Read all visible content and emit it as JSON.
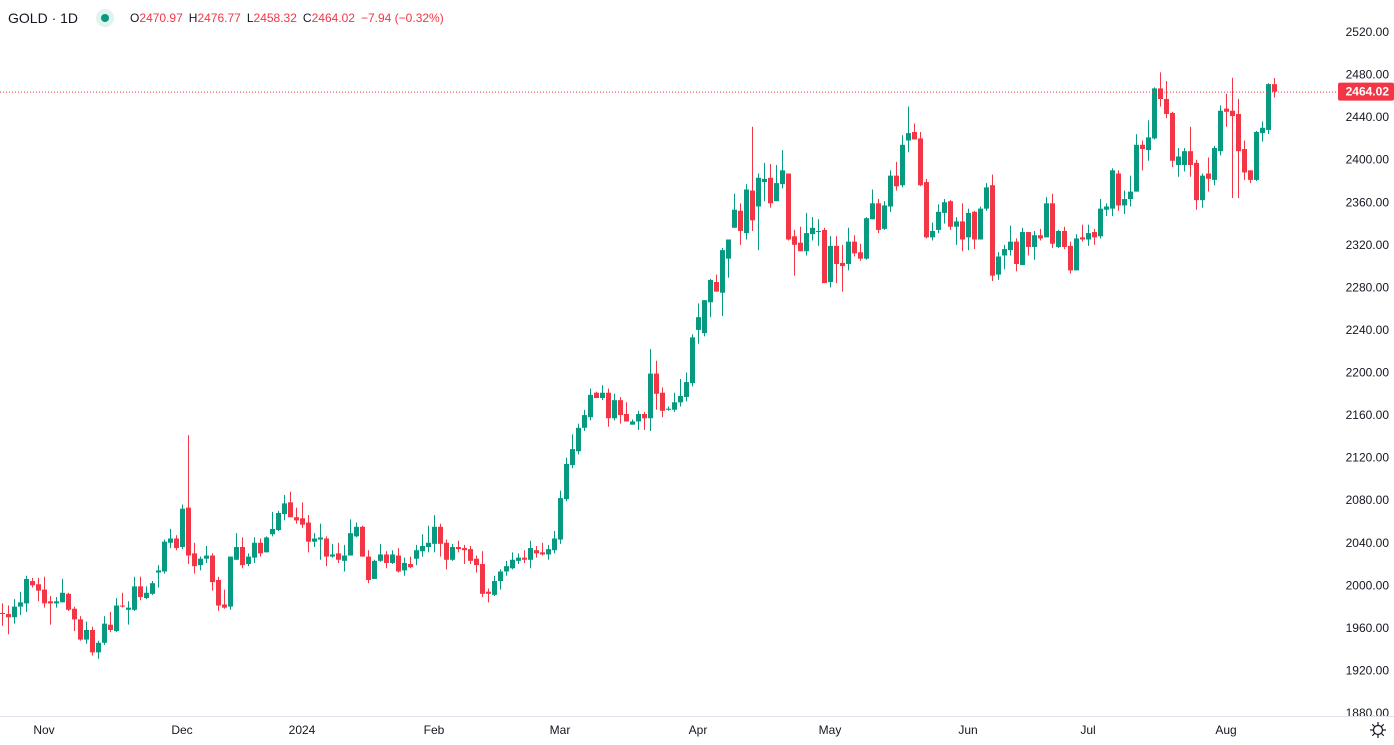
{
  "header": {
    "symbol": "GOLD",
    "separator": "·",
    "interval": "1D",
    "status_color": "#089981",
    "open_label": "O",
    "open": "2470.97",
    "high_label": "H",
    "high": "2476.77",
    "low_label": "L",
    "low": "2458.32",
    "close_label": "C",
    "close": "2464.02",
    "change": "−7.94 (−0.32%)"
  },
  "last_price_label": "2464.02",
  "colors": {
    "up": "#089981",
    "down": "#F23645",
    "last_price_line": "#F23645"
  },
  "settings_icon": "gear-icon",
  "chart_data": {
    "type": "candlestick",
    "ylim": [
      1880,
      2520
    ],
    "y_ticks": [
      "2520.00",
      "2480.00",
      "2440.00",
      "2400.00",
      "2360.00",
      "2320.00",
      "2280.00",
      "2240.00",
      "2200.00",
      "2160.00",
      "2120.00",
      "2080.00",
      "2040.00",
      "2000.00",
      "1960.00",
      "1920.00",
      "1880.00"
    ],
    "x_ticks": [
      {
        "label": "Nov",
        "bar": 7
      },
      {
        "label": "Dec",
        "bar": 30
      },
      {
        "label": "2024",
        "bar": 50
      },
      {
        "label": "Feb",
        "bar": 72
      },
      {
        "label": "Mar",
        "bar": 93
      },
      {
        "label": "Apr",
        "bar": 116
      },
      {
        "label": "May",
        "bar": 138
      },
      {
        "label": "Jun",
        "bar": 161
      },
      {
        "label": "Jul",
        "bar": 181
      },
      {
        "label": "Aug",
        "bar": 204
      }
    ],
    "grid": false,
    "last_price": 2464.02,
    "ohlc": [
      [
        1974,
        1983,
        1962,
        1973
      ],
      [
        1973,
        1981,
        1954,
        1970
      ],
      [
        1970,
        1987,
        1964,
        1980
      ],
      [
        1980,
        1994,
        1972,
        1984
      ],
      [
        1983,
        2009,
        1975,
        2006
      ],
      [
        2004,
        2007,
        1998,
        2000
      ],
      [
        2001,
        2007,
        1985,
        1995
      ],
      [
        1996,
        2008,
        1979,
        1983
      ],
      [
        1985,
        1990,
        1963,
        1983
      ],
      [
        1983,
        1989,
        1979,
        1985
      ],
      [
        1984,
        2006,
        1984,
        1993
      ],
      [
        1992,
        1993,
        1976,
        1977
      ],
      [
        1978,
        1980,
        1957,
        1968
      ],
      [
        1968,
        1971,
        1948,
        1949
      ],
      [
        1949,
        1966,
        1945,
        1958
      ],
      [
        1958,
        1961,
        1934,
        1937
      ],
      [
        1937,
        1948,
        1931,
        1946
      ],
      [
        1946,
        1971,
        1944,
        1964
      ],
      [
        1963,
        1975,
        1956,
        1958
      ],
      [
        1957,
        1988,
        1956,
        1981
      ],
      [
        1981,
        1993,
        1979,
        1980
      ],
      [
        1977,
        1985,
        1963,
        1979
      ],
      [
        1977,
        2008,
        1976,
        1999
      ],
      [
        1999,
        2008,
        1986,
        1989
      ],
      [
        1988,
        1999,
        1987,
        1993
      ],
      [
        1992,
        2004,
        1991,
        2002
      ],
      [
        2012,
        2019,
        1998,
        2014
      ],
      [
        2013,
        2043,
        2011,
        2041
      ],
      [
        2040,
        2053,
        2035,
        2044
      ],
      [
        2044,
        2047,
        2033,
        2035
      ],
      [
        2036,
        2076,
        2034,
        2072
      ],
      [
        2073,
        2141,
        2020,
        2028
      ],
      [
        2030,
        2040,
        2011,
        2018
      ],
      [
        2019,
        2027,
        2014,
        2025
      ],
      [
        2025,
        2037,
        2021,
        2028
      ],
      [
        2028,
        2030,
        1995,
        2003
      ],
      [
        2005,
        2008,
        1976,
        1981
      ],
      [
        1982,
        1996,
        1978,
        1979
      ],
      [
        1980,
        2027,
        1977,
        2027
      ],
      [
        2024,
        2049,
        2024,
        2036
      ],
      [
        2036,
        2045,
        2016,
        2019
      ],
      [
        2020,
        2030,
        2018,
        2027
      ],
      [
        2026,
        2045,
        2021,
        2040
      ],
      [
        2040,
        2044,
        2027,
        2030
      ],
      [
        2031,
        2046,
        2031,
        2045
      ],
      [
        2048,
        2069,
        2046,
        2053
      ],
      [
        2052,
        2070,
        2051,
        2068
      ],
      [
        2067,
        2085,
        2061,
        2077
      ],
      [
        2078,
        2088,
        2064,
        2064
      ],
      [
        2064,
        2073,
        2058,
        2061
      ],
      [
        2063,
        2078,
        2054,
        2057
      ],
      [
        2059,
        2066,
        2031,
        2041
      ],
      [
        2041,
        2049,
        2036,
        2044
      ],
      [
        2043,
        2058,
        2024,
        2045
      ],
      [
        2044,
        2046,
        2018,
        2027
      ],
      [
        2027,
        2039,
        2026,
        2029
      ],
      [
        2030,
        2040,
        2021,
        2024
      ],
      [
        2023,
        2038,
        2013,
        2028
      ],
      [
        2028,
        2062,
        2028,
        2049
      ],
      [
        2046,
        2059,
        2045,
        2055
      ],
      [
        2055,
        2056,
        2027,
        2027
      ],
      [
        2027,
        2033,
        2002,
        2005
      ],
      [
        2006,
        2024,
        2006,
        2023
      ],
      [
        2023,
        2039,
        2022,
        2029
      ],
      [
        2029,
        2032,
        2016,
        2021
      ],
      [
        2021,
        2033,
        2020,
        2029
      ],
      [
        2028,
        2035,
        2012,
        2013
      ],
      [
        2014,
        2026,
        2009,
        2021
      ],
      [
        2020,
        2027,
        2016,
        2017
      ],
      [
        2025,
        2038,
        2019,
        2033
      ],
      [
        2032,
        2048,
        2027,
        2037
      ],
      [
        2036,
        2056,
        2031,
        2040
      ],
      [
        2039,
        2066,
        2031,
        2055
      ],
      [
        2055,
        2058,
        2027,
        2039
      ],
      [
        2040,
        2043,
        2015,
        2024
      ],
      [
        2024,
        2039,
        2023,
        2036
      ],
      [
        2036,
        2042,
        2031,
        2034
      ],
      [
        2035,
        2038,
        2020,
        2033
      ],
      [
        2034,
        2037,
        2020,
        2023
      ],
      [
        2025,
        2028,
        2012,
        2019
      ],
      [
        2020,
        2032,
        1989,
        1992
      ],
      [
        1994,
        1997,
        1984,
        1992
      ],
      [
        1991,
        2009,
        1990,
        2004
      ],
      [
        2004,
        2015,
        1996,
        2013
      ],
      [
        2013,
        2023,
        2009,
        2018
      ],
      [
        2016,
        2031,
        2015,
        2024
      ],
      [
        2023,
        2030,
        2020,
        2026
      ],
      [
        2026,
        2033,
        2021,
        2024
      ],
      [
        2024,
        2042,
        2016,
        2035
      ],
      [
        2033,
        2037,
        2026,
        2030
      ],
      [
        2031,
        2040,
        2028,
        2029
      ],
      [
        2029,
        2038,
        2024,
        2034
      ],
      [
        2033,
        2051,
        2030,
        2044
      ],
      [
        2043,
        2089,
        2039,
        2082
      ],
      [
        2081,
        2120,
        2079,
        2114
      ],
      [
        2113,
        2142,
        2110,
        2128
      ],
      [
        2126,
        2152,
        2123,
        2148
      ],
      [
        2148,
        2165,
        2145,
        2160
      ],
      [
        2158,
        2185,
        2155,
        2179
      ],
      [
        2181,
        2182,
        2176,
        2176
      ],
      [
        2176,
        2188,
        2174,
        2181
      ],
      [
        2181,
        2185,
        2149,
        2157
      ],
      [
        2157,
        2180,
        2155,
        2174
      ],
      [
        2174,
        2177,
        2152,
        2160
      ],
      [
        2161,
        2172,
        2154,
        2154
      ],
      [
        2151,
        2156,
        2151,
        2154
      ],
      [
        2154,
        2164,
        2146,
        2161
      ],
      [
        2161,
        2163,
        2146,
        2157
      ],
      [
        2157,
        2222,
        2145,
        2199
      ],
      [
        2199,
        2211,
        2165,
        2180
      ],
      [
        2181,
        2186,
        2158,
        2164
      ],
      [
        2165,
        2168,
        2164,
        2166
      ],
      [
        2165,
        2181,
        2163,
        2172
      ],
      [
        2172,
        2194,
        2168,
        2178
      ],
      [
        2177,
        2200,
        2173,
        2191
      ],
      [
        2190,
        2236,
        2187,
        2233
      ],
      [
        2240,
        2265,
        2227,
        2252
      ],
      [
        2237,
        2268,
        2234,
        2268
      ],
      [
        2266,
        2288,
        2252,
        2287
      ],
      [
        2285,
        2292,
        2276,
        2276
      ],
      [
        2275,
        2317,
        2253,
        2315
      ],
      [
        2307,
        2325,
        2289,
        2325
      ],
      [
        2336,
        2368,
        2336,
        2353
      ],
      [
        2352,
        2359,
        2320,
        2333
      ],
      [
        2331,
        2377,
        2325,
        2372
      ],
      [
        2371,
        2431,
        2333,
        2343
      ],
      [
        2356,
        2387,
        2315,
        2383
      ],
      [
        2379,
        2397,
        2361,
        2382
      ],
      [
        2383,
        2396,
        2355,
        2359
      ],
      [
        2361,
        2395,
        2361,
        2378
      ],
      [
        2377,
        2409,
        2373,
        2390
      ],
      [
        2387,
        2387,
        2324,
        2325
      ],
      [
        2328,
        2334,
        2291,
        2320
      ],
      [
        2322,
        2337,
        2314,
        2314
      ],
      [
        2314,
        2350,
        2310,
        2331
      ],
      [
        2330,
        2346,
        2324,
        2336
      ],
      [
        2332,
        2344,
        2319,
        2333
      ],
      [
        2334,
        2336,
        2284,
        2284
      ],
      [
        2285,
        2328,
        2280,
        2319
      ],
      [
        2319,
        2328,
        2284,
        2302
      ],
      [
        2303,
        2320,
        2276,
        2300
      ],
      [
        2302,
        2336,
        2296,
        2323
      ],
      [
        2323,
        2329,
        2309,
        2312
      ],
      [
        2313,
        2321,
        2305,
        2307
      ],
      [
        2307,
        2346,
        2306,
        2345
      ],
      [
        2344,
        2372,
        2344,
        2359
      ],
      [
        2359,
        2363,
        2331,
        2334
      ],
      [
        2335,
        2361,
        2334,
        2357
      ],
      [
        2356,
        2390,
        2351,
        2385
      ],
      [
        2385,
        2398,
        2371,
        2375
      ],
      [
        2376,
        2423,
        2374,
        2414
      ],
      [
        2418,
        2450,
        2407,
        2425
      ],
      [
        2426,
        2434,
        2420,
        2419
      ],
      [
        2420,
        2426,
        2375,
        2376
      ],
      [
        2379,
        2382,
        2326,
        2327
      ],
      [
        2327,
        2341,
        2324,
        2333
      ],
      [
        2334,
        2358,
        2331,
        2351
      ],
      [
        2350,
        2363,
        2340,
        2360
      ],
      [
        2361,
        2362,
        2334,
        2337
      ],
      [
        2337,
        2346,
        2320,
        2342
      ],
      [
        2342,
        2359,
        2314,
        2325
      ],
      [
        2327,
        2354,
        2315,
        2350
      ],
      [
        2351,
        2352,
        2316,
        2325
      ],
      [
        2325,
        2356,
        2325,
        2354
      ],
      [
        2354,
        2378,
        2352,
        2374
      ],
      [
        2376,
        2386,
        2286,
        2291
      ],
      [
        2292,
        2313,
        2287,
        2309
      ],
      [
        2310,
        2320,
        2297,
        2316
      ],
      [
        2315,
        2338,
        2310,
        2323
      ],
      [
        2323,
        2326,
        2295,
        2302
      ],
      [
        2301,
        2336,
        2301,
        2332
      ],
      [
        2332,
        2332,
        2310,
        2318
      ],
      [
        2318,
        2333,
        2306,
        2329
      ],
      [
        2329,
        2335,
        2324,
        2326
      ],
      [
        2327,
        2365,
        2327,
        2359
      ],
      [
        2359,
        2368,
        2317,
        2321
      ],
      [
        2318,
        2334,
        2317,
        2333
      ],
      [
        2333,
        2337,
        2316,
        2318
      ],
      [
        2319,
        2323,
        2293,
        2296
      ],
      [
        2296,
        2330,
        2296,
        2326
      ],
      [
        2327,
        2339,
        2323,
        2325
      ],
      [
        2325,
        2339,
        2319,
        2331
      ],
      [
        2332,
        2335,
        2320,
        2327
      ],
      [
        2328,
        2363,
        2326,
        2354
      ],
      [
        2353,
        2359,
        2347,
        2356
      ],
      [
        2354,
        2392,
        2347,
        2390
      ],
      [
        2387,
        2390,
        2352,
        2357
      ],
      [
        2357,
        2371,
        2349,
        2363
      ],
      [
        2363,
        2385,
        2356,
        2370
      ],
      [
        2370,
        2424,
        2370,
        2414
      ],
      [
        2414,
        2418,
        2390,
        2410
      ],
      [
        2409,
        2437,
        2399,
        2421
      ],
      [
        2420,
        2468,
        2419,
        2467
      ],
      [
        2467,
        2482,
        2450,
        2457
      ],
      [
        2457,
        2474,
        2439,
        2443
      ],
      [
        2444,
        2445,
        2393,
        2399
      ],
      [
        2395,
        2411,
        2384,
        2403
      ],
      [
        2395,
        2411,
        2389,
        2408
      ],
      [
        2408,
        2431,
        2384,
        2395
      ],
      [
        2397,
        2400,
        2353,
        2362
      ],
      [
        2362,
        2387,
        2355,
        2385
      ],
      [
        2387,
        2402,
        2370,
        2382
      ],
      [
        2381,
        2413,
        2376,
        2411
      ],
      [
        2408,
        2451,
        2404,
        2446
      ],
      [
        2448,
        2462,
        2431,
        2445
      ],
      [
        2446,
        2477,
        2364,
        2441
      ],
      [
        2443,
        2457,
        2364,
        2408
      ],
      [
        2410,
        2418,
        2381,
        2388
      ],
      [
        2390,
        2390,
        2378,
        2381
      ],
      [
        2381,
        2427,
        2380,
        2426
      ],
      [
        2425,
        2436,
        2417,
        2430
      ],
      [
        2428,
        2472,
        2424,
        2471
      ],
      [
        2470.97,
        2476.77,
        2458.32,
        2464.02
      ]
    ]
  }
}
